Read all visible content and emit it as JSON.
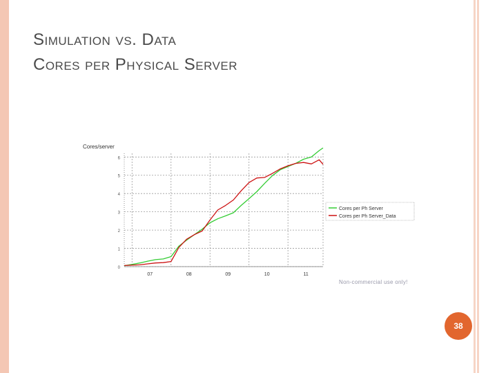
{
  "slide": {
    "title_line1": "Simulation vs. Data",
    "title_line2": "Cores per Physical Server",
    "page_number": "38",
    "accent_color": "#e2662e"
  },
  "chart_data": {
    "type": "line",
    "ylabel": "Cores/server",
    "x": [
      2006.8,
      2007.0,
      2007.2,
      2007.4,
      2007.6,
      2007.8,
      2008.0,
      2008.2,
      2008.4,
      2008.6,
      2008.8,
      2009.0,
      2009.2,
      2009.4,
      2009.6,
      2009.8,
      2010.0,
      2010.2,
      2010.4,
      2010.6,
      2010.8,
      2011.0,
      2011.2,
      2011.4,
      2011.6,
      2011.8,
      2011.9
    ],
    "xlim": [
      2006.8,
      2011.9
    ],
    "x_ticks": [
      2007,
      2008,
      2009,
      2010,
      2011
    ],
    "x_tick_labels": [
      "07",
      "08",
      "09",
      "10",
      "11"
    ],
    "ylim": [
      0,
      6.2
    ],
    "y_ticks": [
      0,
      1,
      2,
      3,
      4,
      5,
      6
    ],
    "y_tick_labels": [
      "0",
      "1",
      "2",
      "3",
      "4",
      "5",
      "6"
    ],
    "series": [
      {
        "name": "Cores per Ph Server",
        "color": "#33cc33",
        "values": [
          0.05,
          0.12,
          0.2,
          0.3,
          0.38,
          0.42,
          0.55,
          1.12,
          1.45,
          1.75,
          2.05,
          2.4,
          2.62,
          2.78,
          2.95,
          3.35,
          3.72,
          4.1,
          4.55,
          4.98,
          5.3,
          5.48,
          5.65,
          5.88,
          6.0,
          6.35,
          6.5
        ]
      },
      {
        "name": "Cores per Ph Server_Data",
        "color": "#cc1111",
        "values": [
          0.06,
          0.08,
          0.1,
          0.15,
          0.2,
          0.22,
          0.28,
          1.05,
          1.5,
          1.75,
          1.95,
          2.55,
          3.1,
          3.35,
          3.65,
          4.15,
          4.6,
          4.85,
          4.88,
          5.1,
          5.35,
          5.52,
          5.65,
          5.7,
          5.62,
          5.85,
          5.6
        ]
      }
    ],
    "legend_position": "right",
    "grid": true,
    "grid_style": "dotted",
    "watermark": "Non-commercial use only!"
  }
}
